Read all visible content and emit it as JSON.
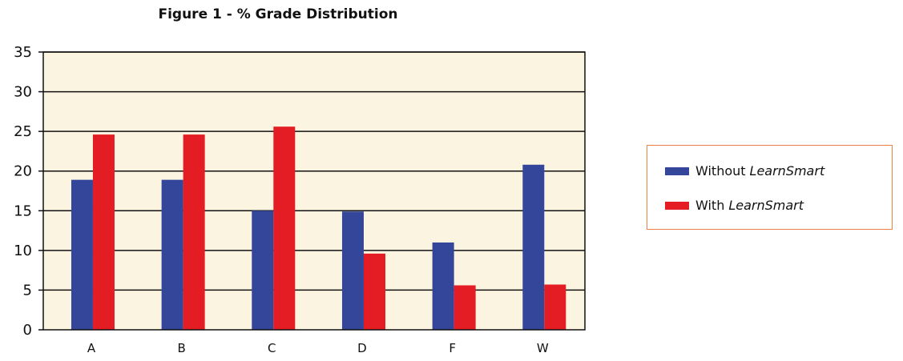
{
  "chart_data": {
    "type": "bar",
    "title": "Figure 1 - % Grade Distribution",
    "xlabel": "",
    "ylabel": "",
    "categories": [
      "A",
      "B",
      "C",
      "D",
      "F",
      "W"
    ],
    "ylim": [
      0,
      35
    ],
    "yticks": [
      0,
      5,
      10,
      15,
      20,
      25,
      30,
      35
    ],
    "grid": true,
    "plot_background": "#fbf4e1",
    "legend_placement": "right",
    "series": [
      {
        "name_prefix": "Without",
        "name_emphasis": "LearnSmart",
        "color": "#34469a",
        "values": [
          18.9,
          18.9,
          15.0,
          14.9,
          11.0,
          20.8
        ]
      },
      {
        "name_prefix": "With",
        "name_emphasis": "LearnSmart",
        "color": "#e41c24",
        "values": [
          24.6,
          24.6,
          25.6,
          9.6,
          5.6,
          5.7
        ]
      }
    ]
  }
}
